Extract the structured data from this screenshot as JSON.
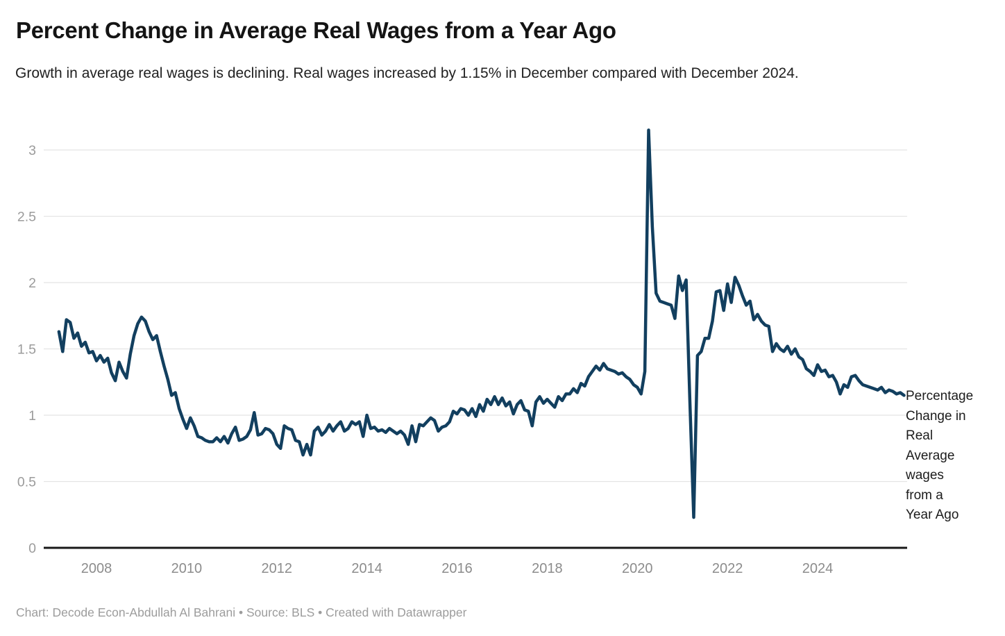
{
  "header": {
    "title": "Percent Change in Average Real Wages from a Year Ago",
    "subtitle": "Growth in average real wages is declining. Real wages increased by 1.15% in December compared with December 2024."
  },
  "annotation": {
    "text": "Percentage Change in Real Average wages from a Year Ago",
    "lines": [
      "Percentage",
      "Change in",
      "Real",
      "Average",
      "wages",
      "from a",
      "Year Ago"
    ]
  },
  "footer": {
    "byline": "Chart: Decode Econ-Abdullah Al Bahrani • Source: BLS • Created with Datawrapper"
  },
  "colors": {
    "line": "#123f5f",
    "grid": "#e4e4e4",
    "zero_axis": "#181818",
    "y_tick_label": "#9b9b9b",
    "x_tick_label": "#8c8c8c",
    "background": "#ffffff"
  },
  "chart_data": {
    "type": "line",
    "title": "Percent Change in Average Real Wages from a Year Ago",
    "xlabel": "",
    "ylabel": "",
    "grid": "horizontal",
    "legend_position": "right-of-line-end",
    "frequency": "monthly",
    "x_start": {
      "year": 2007,
      "month": 3
    },
    "x_end": {
      "year": 2025,
      "month": 12
    },
    "x_tick_years": [
      2008,
      2010,
      2012,
      2014,
      2016,
      2018,
      2020,
      2022,
      2024
    ],
    "y_ticks": [
      0,
      0.5,
      1,
      1.5,
      2,
      2.5,
      3
    ],
    "ylim": [
      0,
      3.2
    ],
    "latest_point": {
      "label": "December 2025",
      "value": 1.15
    },
    "peak_point": {
      "label": "April 2020",
      "value": 3.15
    },
    "trough_point": {
      "label": "April 2021",
      "value": 0.23
    },
    "series": [
      {
        "name": "Percentage Change in Real Average wages from a Year Ago",
        "color": "#123f5f",
        "values": [
          1.63,
          1.48,
          1.72,
          1.7,
          1.58,
          1.62,
          1.52,
          1.55,
          1.47,
          1.48,
          1.41,
          1.45,
          1.4,
          1.43,
          1.32,
          1.26,
          1.4,
          1.33,
          1.28,
          1.46,
          1.6,
          1.69,
          1.74,
          1.71,
          1.63,
          1.57,
          1.6,
          1.48,
          1.37,
          1.27,
          1.15,
          1.17,
          1.05,
          0.97,
          0.9,
          0.98,
          0.92,
          0.84,
          0.83,
          0.81,
          0.8,
          0.8,
          0.83,
          0.8,
          0.84,
          0.79,
          0.86,
          0.91,
          0.81,
          0.82,
          0.84,
          0.89,
          1.02,
          0.85,
          0.86,
          0.9,
          0.89,
          0.86,
          0.78,
          0.75,
          0.92,
          0.9,
          0.89,
          0.81,
          0.8,
          0.7,
          0.78,
          0.7,
          0.88,
          0.91,
          0.85,
          0.88,
          0.93,
          0.88,
          0.92,
          0.95,
          0.88,
          0.9,
          0.95,
          0.93,
          0.95,
          0.84,
          1.0,
          0.9,
          0.91,
          0.88,
          0.89,
          0.87,
          0.9,
          0.88,
          0.86,
          0.88,
          0.85,
          0.78,
          0.92,
          0.8,
          0.93,
          0.92,
          0.95,
          0.98,
          0.96,
          0.88,
          0.91,
          0.92,
          0.95,
          1.03,
          1.01,
          1.05,
          1.04,
          1.0,
          1.05,
          0.99,
          1.08,
          1.03,
          1.12,
          1.08,
          1.14,
          1.08,
          1.13,
          1.07,
          1.1,
          1.01,
          1.08,
          1.11,
          1.04,
          1.03,
          0.92,
          1.1,
          1.14,
          1.09,
          1.12,
          1.09,
          1.06,
          1.14,
          1.11,
          1.16,
          1.16,
          1.2,
          1.17,
          1.24,
          1.22,
          1.29,
          1.33,
          1.37,
          1.34,
          1.39,
          1.35,
          1.34,
          1.33,
          1.31,
          1.32,
          1.29,
          1.27,
          1.23,
          1.21,
          1.16,
          1.33,
          3.15,
          2.42,
          1.92,
          1.86,
          1.85,
          1.84,
          1.83,
          1.73,
          2.05,
          1.94,
          2.02,
          1.1,
          0.23,
          1.45,
          1.48,
          1.58,
          1.58,
          1.71,
          1.93,
          1.94,
          1.79,
          1.99,
          1.85,
          2.04,
          1.98,
          1.9,
          1.83,
          1.86,
          1.72,
          1.76,
          1.71,
          1.68,
          1.67,
          1.48,
          1.54,
          1.5,
          1.48,
          1.52,
          1.46,
          1.5,
          1.44,
          1.42,
          1.35,
          1.33,
          1.3,
          1.38,
          1.33,
          1.34,
          1.29,
          1.3,
          1.25,
          1.16,
          1.23,
          1.21,
          1.29,
          1.3,
          1.26,
          1.23,
          1.22,
          1.21,
          1.2,
          1.19,
          1.21,
          1.17,
          1.19,
          1.18,
          1.16,
          1.17,
          1.15
        ]
      }
    ]
  }
}
